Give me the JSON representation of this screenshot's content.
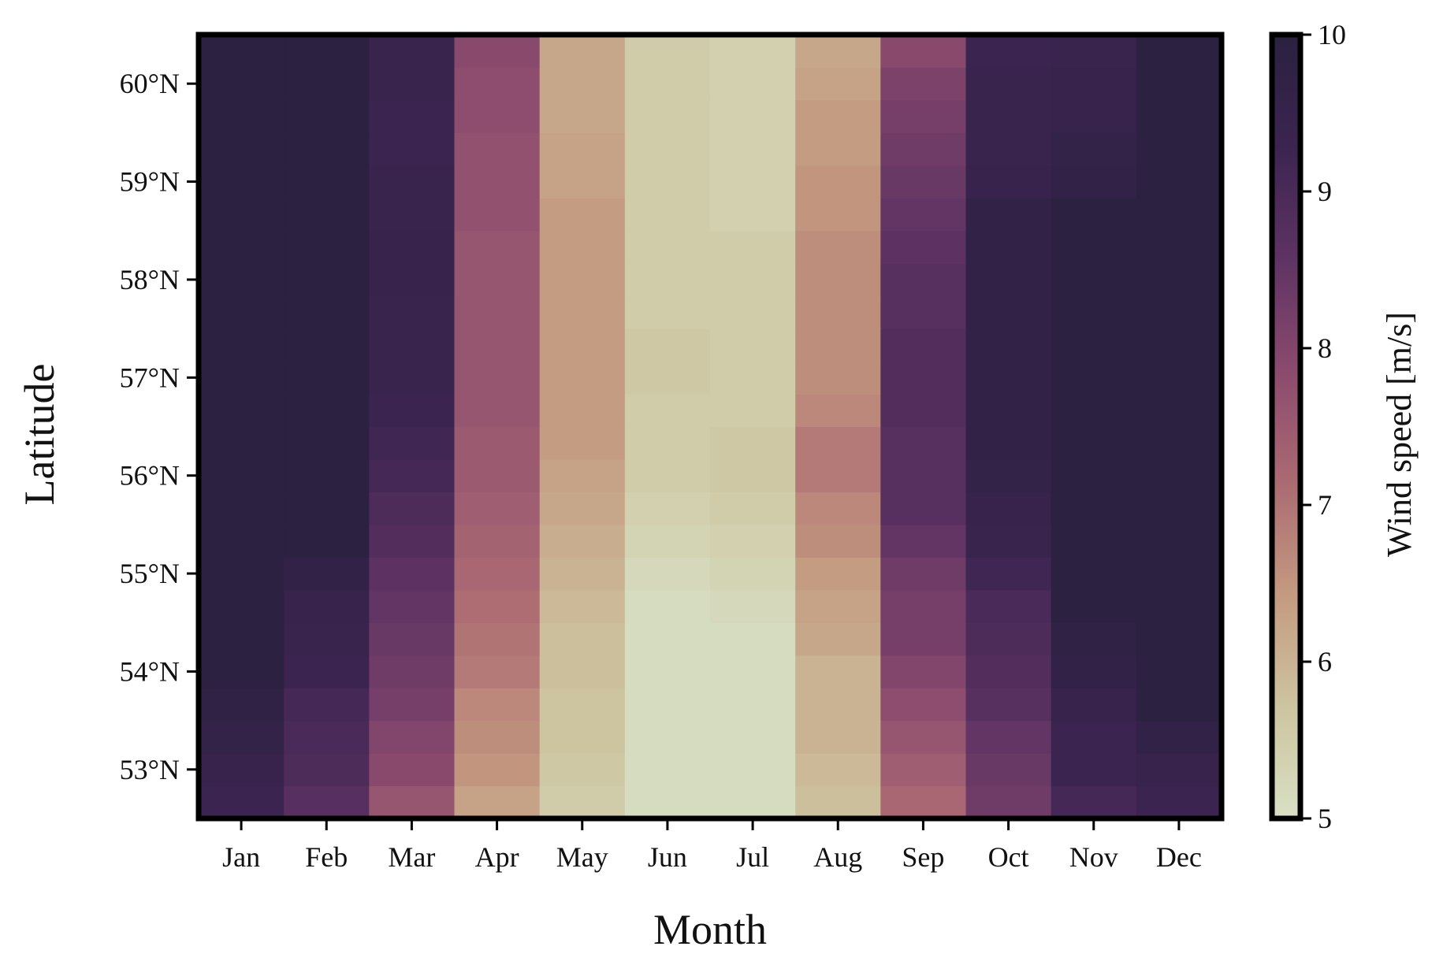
{
  "chart_data": {
    "type": "heatmap",
    "xlabel": "Month",
    "ylabel": "Latitude",
    "x_categories": [
      "Jan",
      "Feb",
      "Mar",
      "Apr",
      "May",
      "Jun",
      "Jul",
      "Aug",
      "Sep",
      "Oct",
      "Nov",
      "Dec"
    ],
    "y_tick_labels": [
      "53°N",
      "54°N",
      "55°N",
      "56°N",
      "57°N",
      "58°N",
      "59°N",
      "60°N"
    ],
    "y_tick_values": [
      53,
      54,
      55,
      56,
      57,
      58,
      59,
      60
    ],
    "ylim": [
      52.5,
      60.5
    ],
    "latitude_rows": [
      52.67,
      53.0,
      53.33,
      53.67,
      54.0,
      54.33,
      54.67,
      55.0,
      55.33,
      55.67,
      56.0,
      56.33,
      56.67,
      57.0,
      57.33,
      57.67,
      58.0,
      58.33,
      58.67,
      59.0,
      59.33,
      59.67,
      60.0,
      60.33
    ],
    "colorbar": {
      "label": "Wind speed [m/s]",
      "range": [
        5,
        10
      ],
      "ticks": [
        5,
        6,
        7,
        8,
        9,
        10
      ],
      "colormap": [
        "#d8e0c4",
        "#cdc49f",
        "#c49a80",
        "#ab6a72",
        "#8b4a6e",
        "#5e3363",
        "#3c2450",
        "#2a2140"
      ]
    },
    "values": [
      [
        9.3,
        8.7,
        7.6,
        6.3,
        5.5,
        5.1,
        5.1,
        5.8,
        7.2,
        8.3,
        9.1,
        9.3
      ],
      [
        9.5,
        8.9,
        7.9,
        6.5,
        5.6,
        5.1,
        5.1,
        5.9,
        7.4,
        8.4,
        9.3,
        9.5
      ],
      [
        9.6,
        9.0,
        8.0,
        6.6,
        5.7,
        5.1,
        5.1,
        6.0,
        7.6,
        8.5,
        9.3,
        9.7
      ],
      [
        9.8,
        9.1,
        8.2,
        6.7,
        5.7,
        5.1,
        5.1,
        6.0,
        7.8,
        8.7,
        9.5,
        9.9
      ],
      [
        9.9,
        9.3,
        8.3,
        6.9,
        5.8,
        5.1,
        5.1,
        6.0,
        8.0,
        8.8,
        9.7,
        9.9
      ],
      [
        9.9,
        9.4,
        8.4,
        7.0,
        5.8,
        5.1,
        5.1,
        6.2,
        8.2,
        8.9,
        9.8,
        9.9
      ],
      [
        9.9,
        9.5,
        8.5,
        7.1,
        5.9,
        5.1,
        5.2,
        6.3,
        8.2,
        9.0,
        9.9,
        9.9
      ],
      [
        9.9,
        9.7,
        8.6,
        7.2,
        6.0,
        5.2,
        5.3,
        6.4,
        8.3,
        9.2,
        9.9,
        9.9
      ],
      [
        9.9,
        9.9,
        8.8,
        7.3,
        6.1,
        5.3,
        5.4,
        6.6,
        8.5,
        9.4,
        9.9,
        9.9
      ],
      [
        9.9,
        9.9,
        8.9,
        7.4,
        6.2,
        5.4,
        5.5,
        6.7,
        8.7,
        9.5,
        9.9,
        9.9
      ],
      [
        9.9,
        9.9,
        9.1,
        7.5,
        6.3,
        5.5,
        5.6,
        6.9,
        8.7,
        9.6,
        9.9,
        9.9
      ],
      [
        9.9,
        9.9,
        9.2,
        7.5,
        6.4,
        5.5,
        5.6,
        6.9,
        8.7,
        9.7,
        9.9,
        9.9
      ],
      [
        9.9,
        9.9,
        9.3,
        7.6,
        6.4,
        5.5,
        5.5,
        6.7,
        8.8,
        9.7,
        9.9,
        9.9
      ],
      [
        9.9,
        9.9,
        9.4,
        7.6,
        6.4,
        5.6,
        5.5,
        6.6,
        8.8,
        9.7,
        9.9,
        9.9
      ],
      [
        9.9,
        9.9,
        9.4,
        7.6,
        6.4,
        5.6,
        5.5,
        6.6,
        8.8,
        9.7,
        9.9,
        9.9
      ],
      [
        9.9,
        9.9,
        9.4,
        7.6,
        6.4,
        5.5,
        5.5,
        6.6,
        8.7,
        9.7,
        9.9,
        9.9
      ],
      [
        9.9,
        9.9,
        9.5,
        7.6,
        6.4,
        5.5,
        5.5,
        6.6,
        8.7,
        9.7,
        9.9,
        9.9
      ],
      [
        9.9,
        9.9,
        9.5,
        7.6,
        6.4,
        5.5,
        5.5,
        6.6,
        8.6,
        9.7,
        9.9,
        9.9
      ],
      [
        9.9,
        9.9,
        9.4,
        7.7,
        6.4,
        5.5,
        5.4,
        6.5,
        8.5,
        9.7,
        9.9,
        9.9
      ],
      [
        9.9,
        9.9,
        9.4,
        7.7,
        6.3,
        5.5,
        5.4,
        6.5,
        8.4,
        9.5,
        9.7,
        9.9
      ],
      [
        9.9,
        9.9,
        9.3,
        7.7,
        6.3,
        5.5,
        5.4,
        6.4,
        8.3,
        9.4,
        9.6,
        9.9
      ],
      [
        9.9,
        9.9,
        9.3,
        7.8,
        6.2,
        5.5,
        5.4,
        6.4,
        8.2,
        9.4,
        9.5,
        9.9
      ],
      [
        9.9,
        9.9,
        9.4,
        7.8,
        6.2,
        5.5,
        5.4,
        6.3,
        8.1,
        9.4,
        9.5,
        9.9
      ],
      [
        9.9,
        9.9,
        9.4,
        7.9,
        6.2,
        5.5,
        5.4,
        6.2,
        7.9,
        9.3,
        9.4,
        9.9
      ]
    ]
  }
}
